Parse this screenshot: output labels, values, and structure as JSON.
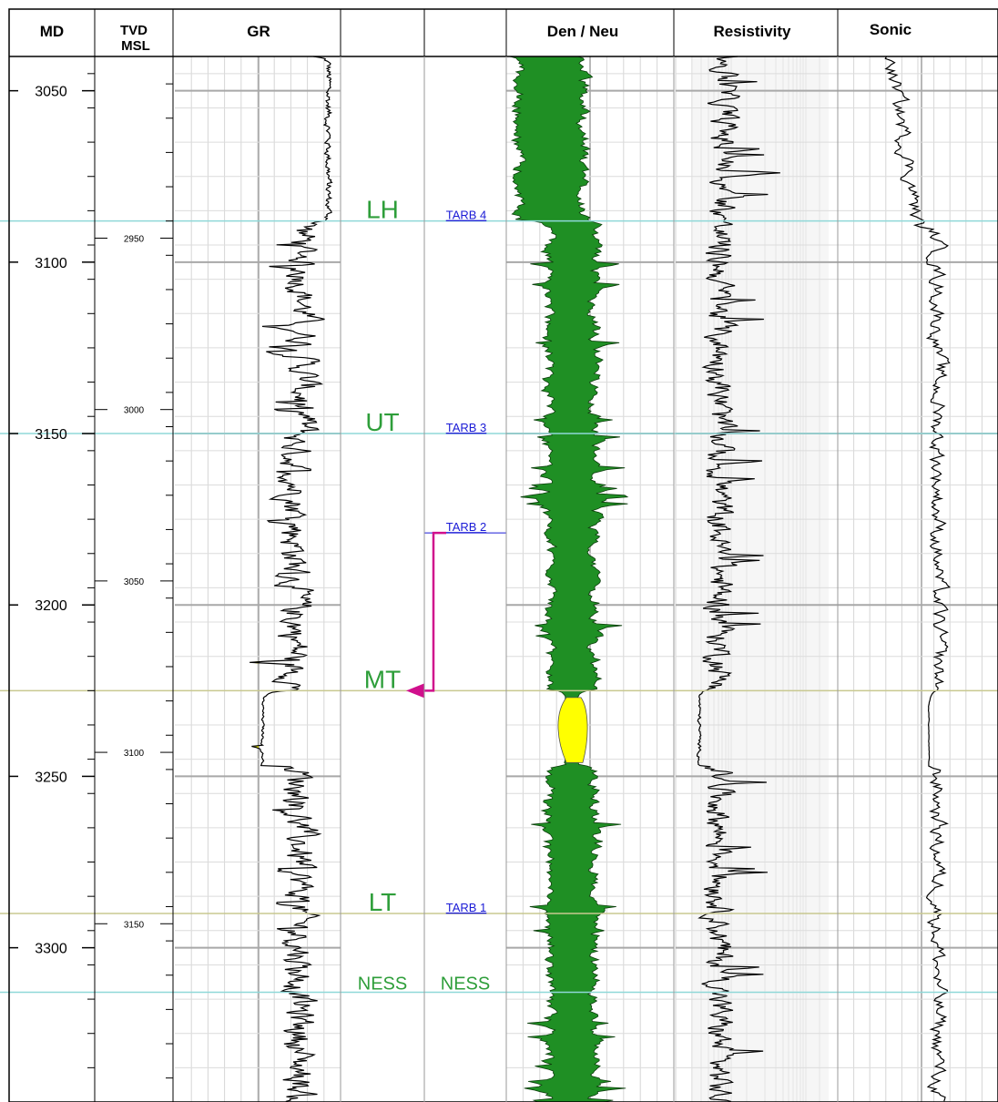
{
  "headers": {
    "md": "MD",
    "tvd_line1": "TVD",
    "tvd_line2": "MSL",
    "gr": "GR",
    "den_neu": "Den / Neu",
    "resistivity": "Resistivity",
    "sonic": "Sonic"
  },
  "colors": {
    "zone_green": "#2e9e3a",
    "tarb_blue": "#1a1ad6",
    "gr_fill": "#ffff00",
    "density_fill": "#1f8f24",
    "horizon_cyan": "#8fd8d8",
    "horizon_olive": "#c8c890",
    "arrow_magenta": "#d0108c"
  },
  "chart_data": {
    "type": "well_log",
    "md_ticks": [
      "3050",
      "3100",
      "3150",
      "3200",
      "3250",
      "3300"
    ],
    "md_range": [
      3040,
      3345
    ],
    "tvd_ticks": [
      {
        "label": "2950",
        "md": 3093
      },
      {
        "label": "3000",
        "md": 3143
      },
      {
        "label": "3050",
        "md": 3193
      },
      {
        "label": "3100",
        "md": 3243
      },
      {
        "label": "3150",
        "md": 3293
      }
    ],
    "zones": [
      {
        "label": "LH",
        "md": 3088
      },
      {
        "label": "UT",
        "md": 3150
      },
      {
        "label": "MT",
        "md": 3225
      },
      {
        "label": "LT",
        "md": 3290
      },
      {
        "label": "NESS",
        "md": 3313
      }
    ],
    "tops": [
      {
        "label": "TARB 4",
        "md": 3088
      },
      {
        "label": "TARB 3",
        "md": 3150
      },
      {
        "label": "TARB 2",
        "md": 3179
      },
      {
        "label": "TARB 1",
        "md": 3290
      },
      {
        "label": "NESS",
        "md": 3313
      }
    ],
    "arrow": {
      "from_md": 3179,
      "to_md": 3225
    }
  }
}
